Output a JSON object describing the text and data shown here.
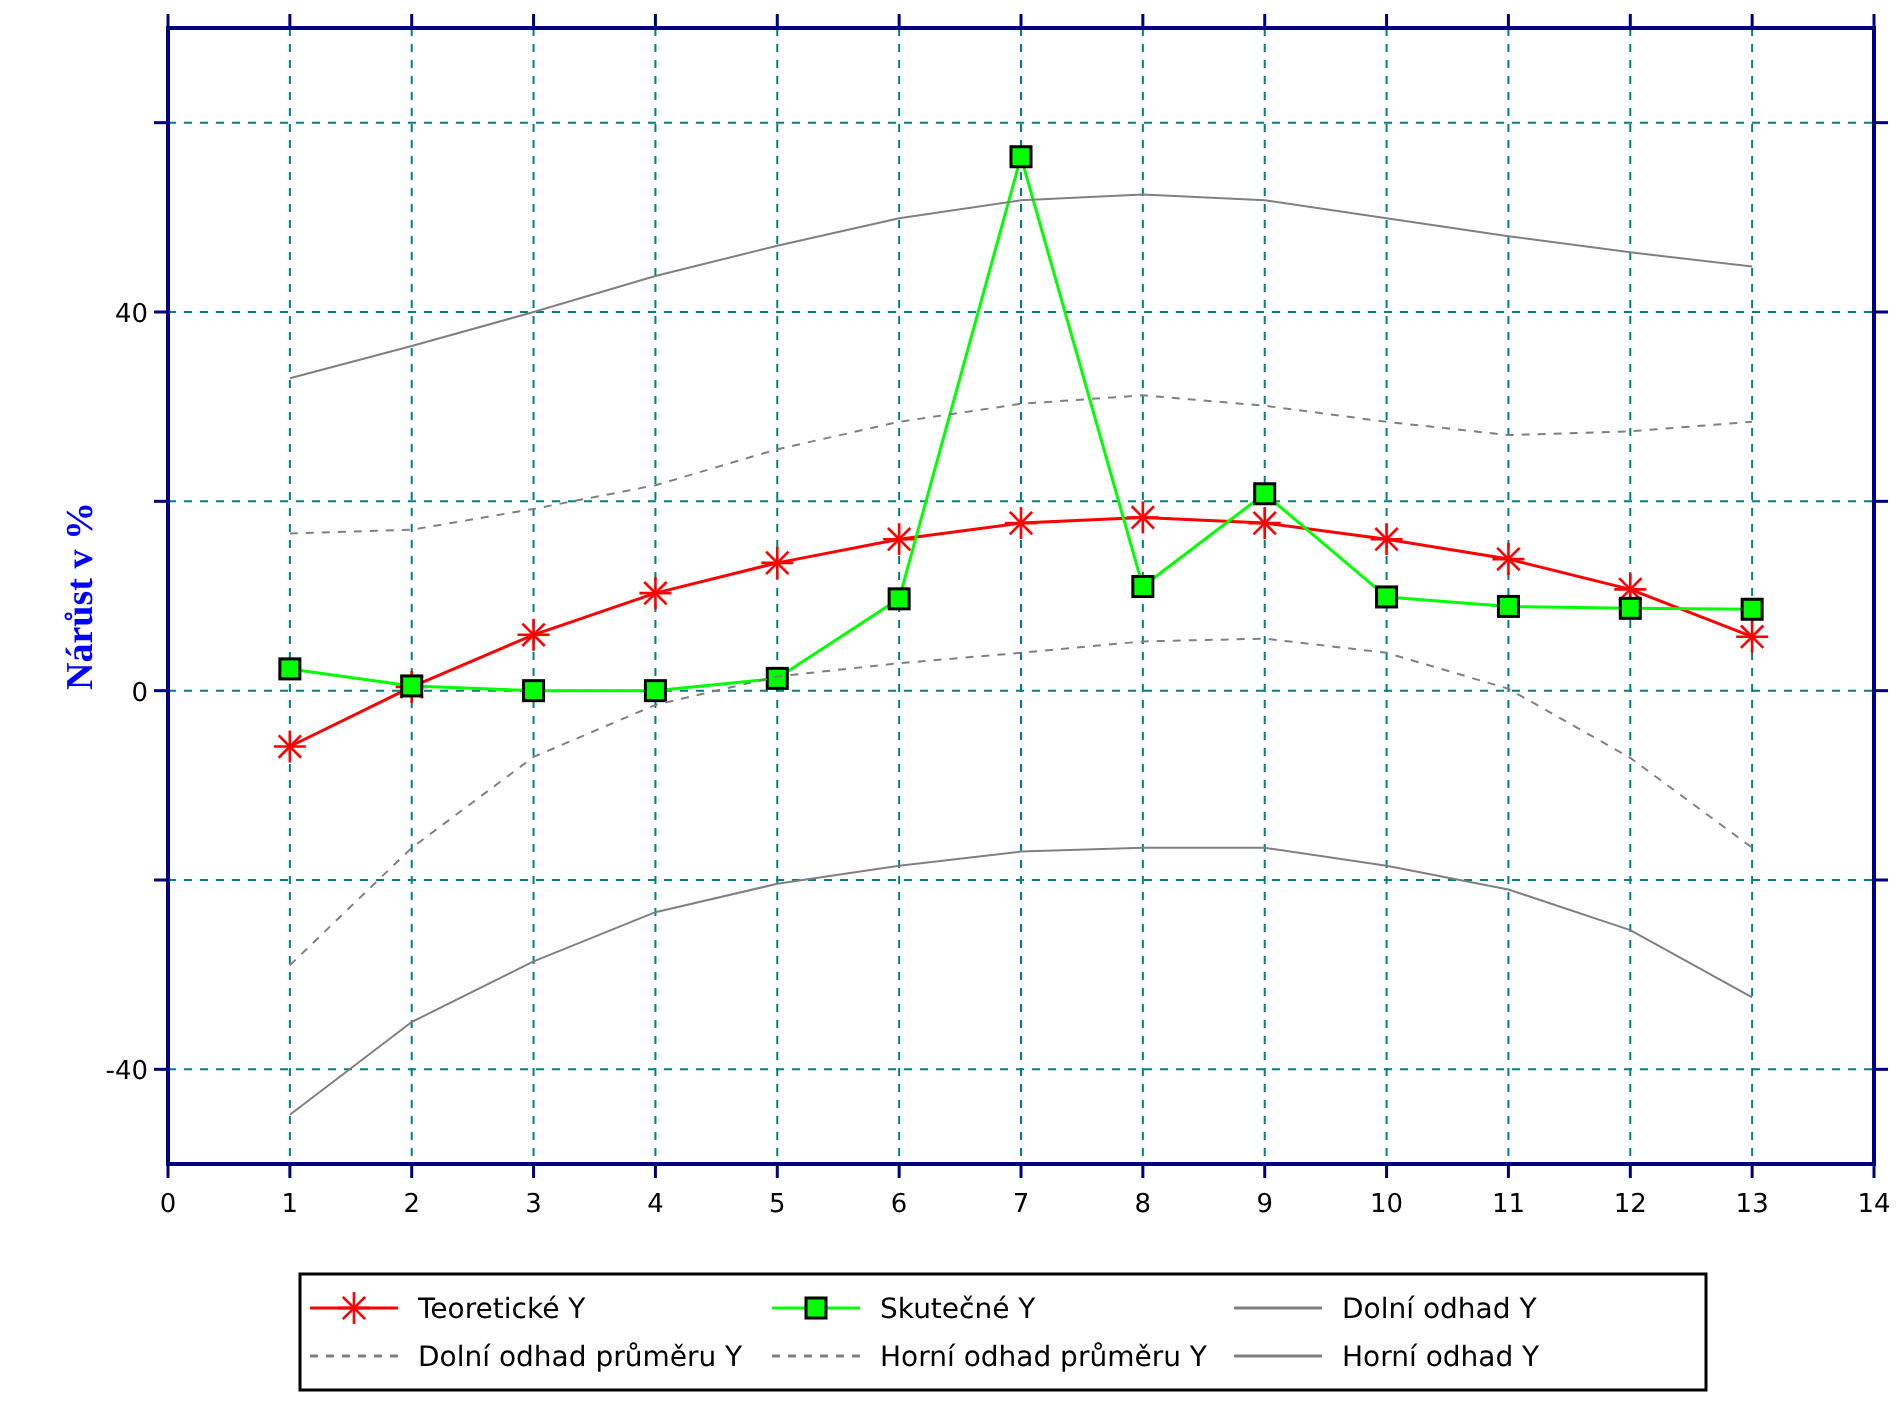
{
  "chart_data": {
    "type": "line",
    "ylabel": "Nárůst v %",
    "x": [
      1,
      2,
      3,
      4,
      5,
      6,
      7,
      8,
      9,
      10,
      11,
      12,
      13
    ],
    "xlim": [
      0,
      14
    ],
    "xticks": [
      0,
      1,
      2,
      3,
      4,
      5,
      6,
      7,
      8,
      9,
      10,
      11,
      12,
      13,
      14
    ],
    "ylim": [
      -50,
      70
    ],
    "yticks": [
      {
        "value": -40,
        "label": "-40"
      },
      {
        "value": -20,
        "label": null
      },
      {
        "value": 0,
        "label": "0"
      },
      {
        "value": 20,
        "label": null
      },
      {
        "value": 40,
        "label": "40"
      },
      {
        "value": 60,
        "label": null
      }
    ],
    "grid": true,
    "legend": "bottom",
    "series": [
      {
        "name": "Teoretické Y",
        "color": "#ff0000",
        "marker": "cross",
        "line_style": "solid",
        "values": [
          -5.9,
          0.4,
          5.9,
          10.3,
          13.5,
          16,
          17.7,
          18.3,
          17.7,
          16,
          13.9,
          10.7,
          5.7
        ]
      },
      {
        "name": "Skutečné Y",
        "color": "#00ff00",
        "marker": "square",
        "line_style": "solid",
        "values": [
          2.3,
          0.5,
          0,
          0,
          1.3,
          9.7,
          56.4,
          11,
          20.8,
          9.9,
          8.9,
          8.7,
          8.6
        ]
      },
      {
        "name": "Dolní odhad Y",
        "color": "#808080",
        "marker": "none",
        "line_style": "solid",
        "values": [
          -44.8,
          -35,
          -28.6,
          -23.4,
          -20.4,
          -18.5,
          -17,
          -16.6,
          -16.6,
          -18.5,
          -21,
          -25.3,
          -32.4
        ]
      },
      {
        "name": "Dolní odhad průměru Y",
        "color": "#808080",
        "marker": "none",
        "line_style": "dashed",
        "values": [
          -29,
          -16.6,
          -7,
          -1.5,
          1.5,
          2.9,
          4,
          5.2,
          5.5,
          4,
          0.2,
          -7.1,
          -16.6
        ]
      },
      {
        "name": "Horní odhad průměru Y",
        "color": "#808080",
        "marker": "none",
        "line_style": "dashed",
        "values": [
          16.6,
          17,
          19.2,
          21.7,
          25.5,
          28.4,
          30.3,
          31.2,
          30.1,
          28.4,
          27,
          27.4,
          28.4
        ]
      },
      {
        "name": "Horní odhad Y",
        "color": "#808080",
        "marker": "none",
        "line_style": "solid",
        "values": [
          33,
          36.4,
          40,
          43.8,
          47,
          49.9,
          51.8,
          52.4,
          51.8,
          49.9,
          48,
          46.3,
          44.8
        ]
      }
    ]
  }
}
